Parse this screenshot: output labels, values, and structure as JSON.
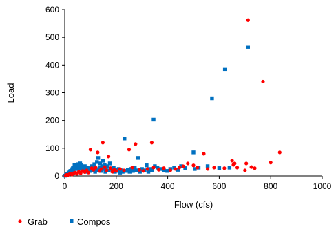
{
  "chart_data": {
    "type": "scatter",
    "title": "",
    "xlabel": "Flow (cfs)",
    "ylabel": "Load",
    "xlim": [
      0,
      1000
    ],
    "ylim": [
      0,
      600
    ],
    "xticks": [
      0,
      200,
      400,
      600,
      800,
      1000
    ],
    "yticks": [
      0,
      100,
      200,
      300,
      400,
      500,
      600
    ],
    "grid": false,
    "legend_position": "bottom-left",
    "series": [
      {
        "name": "Grab",
        "marker": "circle",
        "color": "#ff0000",
        "points": [
          [
            3,
            2
          ],
          [
            8,
            4
          ],
          [
            12,
            3
          ],
          [
            18,
            6
          ],
          [
            22,
            8
          ],
          [
            28,
            5
          ],
          [
            35,
            10
          ],
          [
            42,
            12
          ],
          [
            48,
            8
          ],
          [
            55,
            15
          ],
          [
            62,
            10
          ],
          [
            70,
            18
          ],
          [
            78,
            14
          ],
          [
            85,
            20
          ],
          [
            92,
            12
          ],
          [
            100,
            95
          ],
          [
            105,
            28
          ],
          [
            112,
            22
          ],
          [
            120,
            30
          ],
          [
            128,
            85
          ],
          [
            135,
            18
          ],
          [
            142,
            25
          ],
          [
            148,
            120
          ],
          [
            155,
            32
          ],
          [
            162,
            20
          ],
          [
            170,
            70
          ],
          [
            178,
            28
          ],
          [
            185,
            15
          ],
          [
            192,
            22
          ],
          [
            200,
            18
          ],
          [
            215,
            25
          ],
          [
            230,
            20
          ],
          [
            250,
            95
          ],
          [
            262,
            30
          ],
          [
            275,
            115
          ],
          [
            290,
            22
          ],
          [
            305,
            18
          ],
          [
            322,
            25
          ],
          [
            338,
            120
          ],
          [
            345,
            30
          ],
          [
            365,
            22
          ],
          [
            385,
            28
          ],
          [
            410,
            20
          ],
          [
            430,
            25
          ],
          [
            445,
            30
          ],
          [
            460,
            35
          ],
          [
            478,
            45
          ],
          [
            500,
            38
          ],
          [
            515,
            30
          ],
          [
            540,
            80
          ],
          [
            555,
            25
          ],
          [
            580,
            30
          ],
          [
            620,
            28
          ],
          [
            650,
            55
          ],
          [
            655,
            40
          ],
          [
            660,
            45
          ],
          [
            670,
            30
          ],
          [
            700,
            20
          ],
          [
            705,
            45
          ],
          [
            712,
            562
          ],
          [
            725,
            32
          ],
          [
            738,
            28
          ],
          [
            770,
            340
          ],
          [
            800,
            48
          ],
          [
            835,
            85
          ]
        ]
      },
      {
        "name": "Compos",
        "marker": "square",
        "color": "#0070c0",
        "points": [
          [
            2,
            1
          ],
          [
            5,
            3
          ],
          [
            8,
            5
          ],
          [
            10,
            8
          ],
          [
            13,
            6
          ],
          [
            15,
            12
          ],
          [
            18,
            10
          ],
          [
            20,
            15
          ],
          [
            22,
            18
          ],
          [
            25,
            14
          ],
          [
            28,
            20
          ],
          [
            30,
            25
          ],
          [
            32,
            30
          ],
          [
            35,
            22
          ],
          [
            38,
            40
          ],
          [
            40,
            35
          ],
          [
            42,
            28
          ],
          [
            45,
            38
          ],
          [
            48,
            32
          ],
          [
            50,
            25
          ],
          [
            52,
            42
          ],
          [
            55,
            36
          ],
          [
            58,
            30
          ],
          [
            60,
            45
          ],
          [
            62,
            28
          ],
          [
            65,
            38
          ],
          [
            68,
            22
          ],
          [
            70,
            32
          ],
          [
            72,
            18
          ],
          [
            75,
            25
          ],
          [
            78,
            35
          ],
          [
            80,
            20
          ],
          [
            85,
            30
          ],
          [
            88,
            15
          ],
          [
            90,
            22
          ],
          [
            95,
            28
          ],
          [
            98,
            18
          ],
          [
            100,
            25
          ],
          [
            105,
            35
          ],
          [
            108,
            20
          ],
          [
            110,
            30
          ],
          [
            115,
            42
          ],
          [
            118,
            15
          ],
          [
            120,
            25
          ],
          [
            125,
            50
          ],
          [
            128,
            20
          ],
          [
            130,
            65
          ],
          [
            135,
            30
          ],
          [
            138,
            45
          ],
          [
            140,
            18
          ],
          [
            145,
            35
          ],
          [
            148,
            55
          ],
          [
            150,
            25
          ],
          [
            155,
            40
          ],
          [
            158,
            15
          ],
          [
            160,
            28
          ],
          [
            165,
            35
          ],
          [
            170,
            20
          ],
          [
            175,
            45
          ],
          [
            180,
            25
          ],
          [
            185,
            18
          ],
          [
            190,
            30
          ],
          [
            195,
            15
          ],
          [
            200,
            22
          ],
          [
            205,
            18
          ],
          [
            210,
            25
          ],
          [
            215,
            12
          ],
          [
            220,
            20
          ],
          [
            225,
            15
          ],
          [
            232,
            135
          ],
          [
            238,
            18
          ],
          [
            245,
            22
          ],
          [
            252,
            15
          ],
          [
            258,
            25
          ],
          [
            265,
            18
          ],
          [
            272,
            30
          ],
          [
            278,
            20
          ],
          [
            285,
            65
          ],
          [
            292,
            15
          ],
          [
            300,
            25
          ],
          [
            310,
            20
          ],
          [
            318,
            38
          ],
          [
            325,
            15
          ],
          [
            332,
            25
          ],
          [
            338,
            20
          ],
          [
            345,
            203
          ],
          [
            350,
            35
          ],
          [
            360,
            30
          ],
          [
            372,
            25
          ],
          [
            385,
            20
          ],
          [
            398,
            18
          ],
          [
            410,
            25
          ],
          [
            425,
            30
          ],
          [
            440,
            22
          ],
          [
            452,
            35
          ],
          [
            468,
            28
          ],
          [
            500,
            85
          ],
          [
            505,
            25
          ],
          [
            520,
            30
          ],
          [
            555,
            35
          ],
          [
            572,
            280
          ],
          [
            600,
            28
          ],
          [
            622,
            385
          ],
          [
            640,
            30
          ],
          [
            712,
            465
          ]
        ]
      }
    ]
  }
}
